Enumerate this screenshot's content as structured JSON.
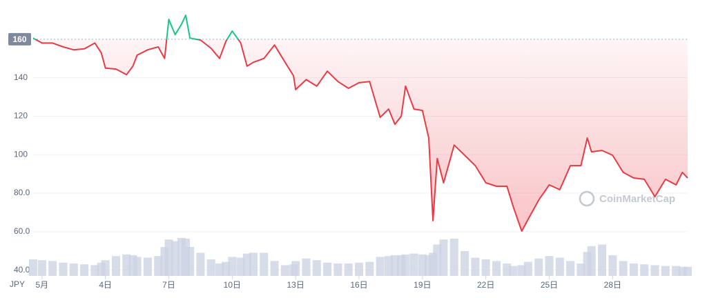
{
  "chart_data": {
    "type": "line",
    "watermark": "CoinMarketCap",
    "y_unit": "JPY",
    "reference_value": 160,
    "grid": true,
    "colors": {
      "above": "#16c784",
      "below": "#ea3943",
      "volume": "#cdd3e4"
    },
    "xlim": [
      0.58,
      31.55
    ],
    "xticks": [
      {
        "value": 1,
        "label": "5月"
      },
      {
        "value": 4,
        "label": "4日"
      },
      {
        "value": 7,
        "label": "7日"
      },
      {
        "value": 10,
        "label": "10日"
      },
      {
        "value": 13,
        "label": "13日"
      },
      {
        "value": 16,
        "label": "16日"
      },
      {
        "value": 19,
        "label": "19日"
      },
      {
        "value": 22,
        "label": "22日"
      },
      {
        "value": 25,
        "label": "25日"
      },
      {
        "value": 28,
        "label": "28日"
      }
    ],
    "ylim": [
      37,
      175
    ],
    "yticks": [
      {
        "value": 40,
        "label": "40.0"
      },
      {
        "value": 60,
        "label": "60.0"
      },
      {
        "value": 80,
        "label": "80.0"
      },
      100,
      120,
      140
    ],
    "y2lim": [
      0,
      100
    ],
    "x": [
      0.58,
      1.0,
      1.5,
      2.0,
      2.5,
      3.0,
      3.5,
      3.8,
      4.0,
      4.5,
      5.0,
      5.3,
      5.5,
      6.0,
      6.5,
      6.8,
      7.0,
      7.3,
      7.6,
      7.8,
      8.0,
      8.5,
      9.0,
      9.4,
      9.7,
      10.0,
      10.4,
      10.7,
      11.0,
      11.5,
      12.0,
      12.5,
      12.9,
      13.0,
      13.5,
      14.0,
      14.5,
      15.0,
      15.5,
      16.0,
      16.5,
      17.0,
      17.4,
      17.7,
      18.0,
      18.2,
      18.6,
      19.0,
      19.3,
      19.5,
      19.7,
      20.0,
      20.5,
      21.0,
      21.5,
      22.0,
      22.5,
      23.0,
      23.3,
      23.7,
      24.0,
      24.5,
      25.0,
      25.5,
      26.0,
      26.5,
      26.8,
      27.0,
      27.5,
      28.0,
      28.5,
      29.0,
      29.5,
      30.0,
      30.5,
      31.0,
      31.3,
      31.55
    ],
    "series": [
      {
        "name": "Price",
        "values": [
          160.6,
          158,
          158,
          156,
          154.5,
          155,
          158,
          153,
          145,
          144.5,
          141.6,
          146,
          151.7,
          154.5,
          156,
          150,
          170.3,
          162.4,
          167.8,
          172.5,
          160.6,
          159.6,
          155.3,
          150,
          158.9,
          164.2,
          158.1,
          146,
          148,
          150,
          157,
          148,
          141,
          133.8,
          139,
          135.6,
          143.4,
          138,
          134.5,
          137.4,
          138,
          119.4,
          123.7,
          115.8,
          120,
          135.6,
          123.7,
          123,
          108.7,
          65.7,
          98,
          85.4,
          105,
          99.7,
          94.3,
          85.4,
          83.6,
          83.6,
          72.8,
          60.3,
          66.4,
          76.4,
          84.3,
          81.8,
          94.3,
          94.3,
          108.7,
          101.5,
          102.2,
          99.7,
          90.8,
          87.9,
          87.2,
          78.2,
          87.2,
          84.3,
          90.8,
          87.9
        ]
      },
      {
        "name": "Volume",
        "axis": "y2",
        "values": [
          40,
          38,
          36,
          32,
          30,
          28,
          26,
          32,
          38,
          48,
          52,
          50,
          46,
          44,
          48,
          70,
          88,
          84,
          92,
          90,
          70,
          56,
          40,
          30,
          34,
          46,
          44,
          54,
          56,
          56,
          36,
          26,
          28,
          36,
          42,
          38,
          32,
          30,
          30,
          32,
          34,
          46,
          48,
          50,
          50,
          52,
          54,
          52,
          50,
          56,
          76,
          88,
          90,
          60,
          44,
          40,
          36,
          30,
          24,
          26,
          34,
          42,
          48,
          44,
          36,
          30,
          58,
          72,
          76,
          50,
          36,
          30,
          28,
          26,
          24,
          24,
          22,
          22
        ]
      }
    ]
  }
}
